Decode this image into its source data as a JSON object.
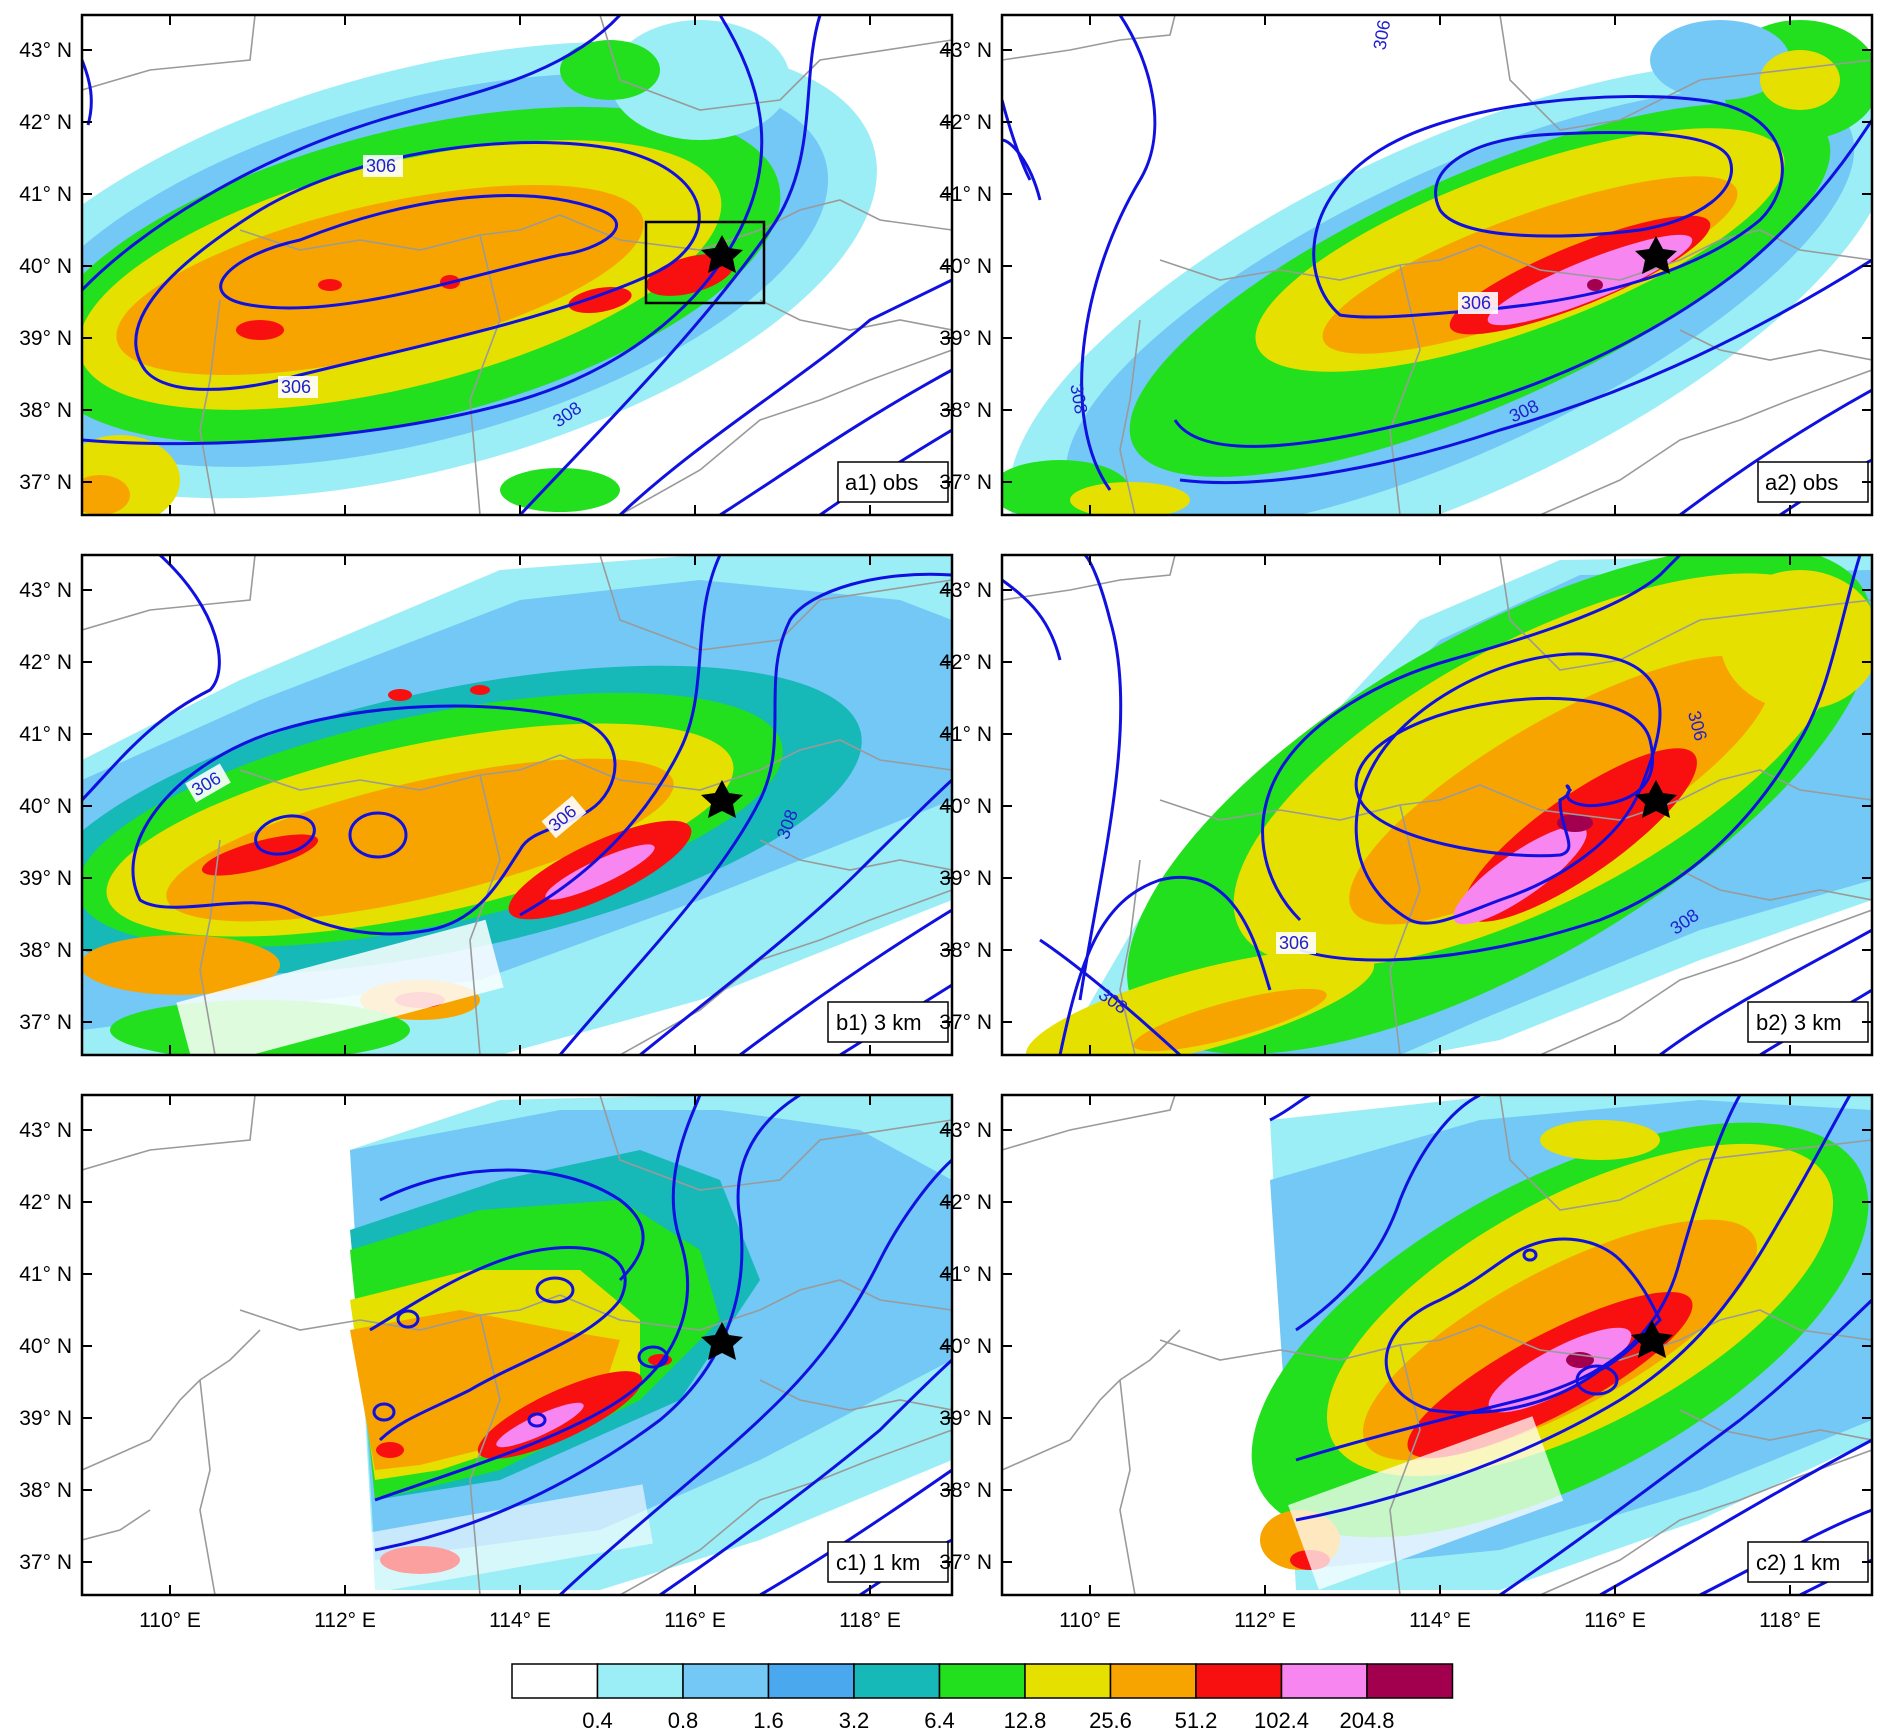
{
  "axes": {
    "lat_labels": [
      "43° N",
      "42° N",
      "41° N",
      "40° N",
      "39° N",
      "38° N",
      "37° N"
    ],
    "lon_labels": [
      "110° E",
      "112° E",
      "114° E",
      "116° E",
      "118° E"
    ]
  },
  "panels": [
    {
      "id": "a1",
      "label": "a1) obs"
    },
    {
      "id": "a2",
      "label": "a2) obs"
    },
    {
      "id": "b1",
      "label": "b1) 3 km"
    },
    {
      "id": "b2",
      "label": "b2) 3 km"
    },
    {
      "id": "c1",
      "label": "c1) 1 km"
    },
    {
      "id": "c2",
      "label": "c2) 1 km"
    }
  ],
  "contour_labels": {
    "a1": [
      "306",
      "306",
      "308"
    ],
    "a2": [
      "306",
      "306",
      "308",
      "308"
    ],
    "b1": [
      "306",
      "306",
      "308"
    ],
    "b2": [
      "306",
      "306",
      "308",
      "308"
    ]
  },
  "colorbar": {
    "levels": [
      "0.4",
      "0.8",
      "1.6",
      "3.2",
      "6.4",
      "12.8",
      "25.6",
      "51.2",
      "102.4",
      "204.8"
    ],
    "colors": [
      "#ffffff",
      "#9beef6",
      "#73c8f5",
      "#4aa8ef",
      "#16b8b8",
      "#22e01e",
      "#e6e000",
      "#f8a400",
      "#f81010",
      "#f886f0",
      "#a2004e"
    ]
  },
  "colors": {
    "contour": "#1010e0",
    "boundary": "#9a9a9a",
    "marker": "#000000"
  }
}
